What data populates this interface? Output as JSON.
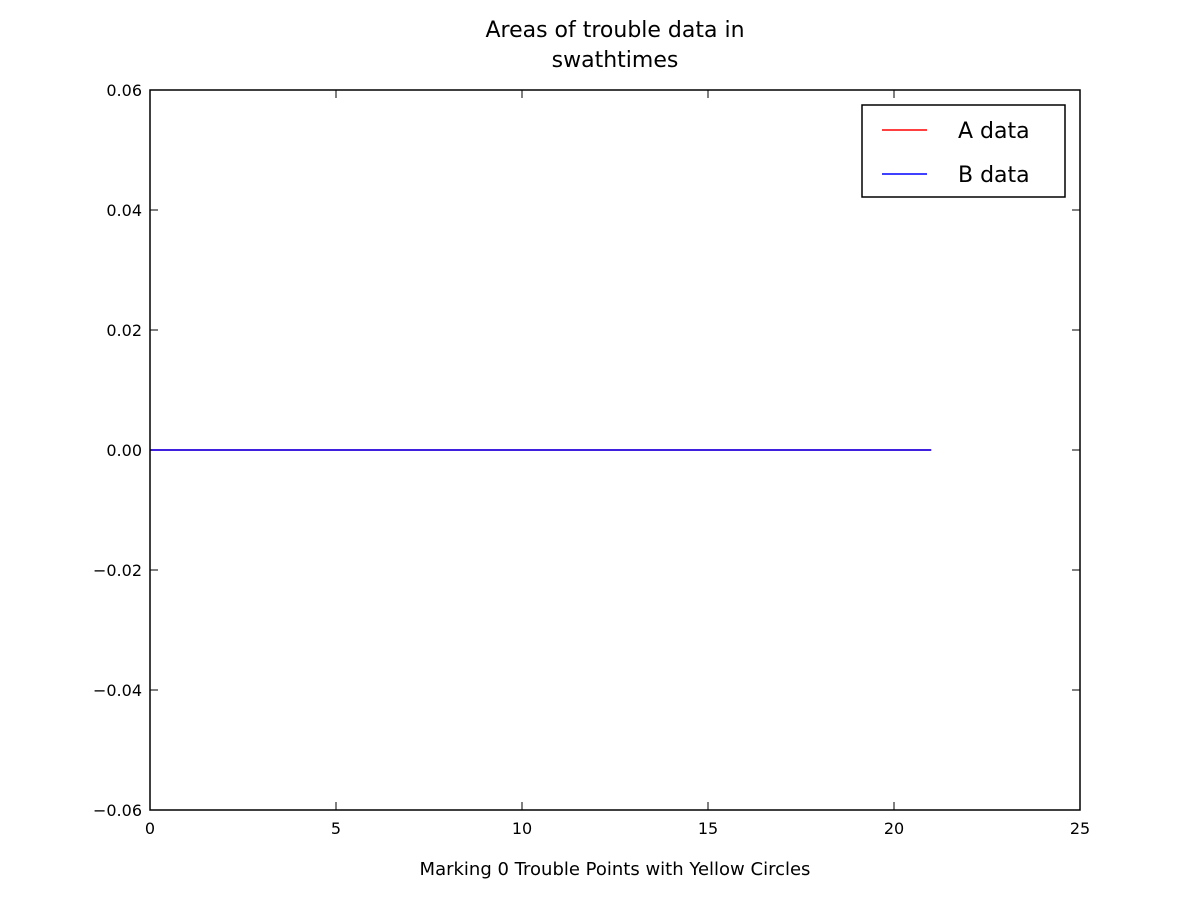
{
  "chart_data": {
    "type": "line",
    "title": "Areas of trouble data in\nswathtimes",
    "x_label": "Marking 0 Trouble Points with Yellow Circles",
    "x": [
      0,
      1,
      2,
      3,
      4,
      5,
      6,
      7,
      8,
      9,
      10,
      11,
      12,
      13,
      14,
      15,
      16,
      17,
      18,
      19,
      20,
      21
    ],
    "series": [
      {
        "name": "A data",
        "color": "#ff0000",
        "values": [
          0,
          0,
          0,
          0,
          0,
          0,
          0,
          0,
          0,
          0,
          0,
          0,
          0,
          0,
          0,
          0,
          0,
          0,
          0,
          0,
          0,
          0
        ]
      },
      {
        "name": "B data",
        "color": "#0000ff",
        "values": [
          0,
          0,
          0,
          0,
          0,
          0,
          0,
          0,
          0,
          0,
          0,
          0,
          0,
          0,
          0,
          0,
          0,
          0,
          0,
          0,
          0,
          0
        ]
      }
    ],
    "xlim": [
      0,
      25
    ],
    "xticks": [
      0,
      5,
      10,
      15,
      20,
      25
    ],
    "ylim": [
      -0.06,
      0.06
    ],
    "yticks": [
      {
        "value": -0.06,
        "label": "−0.06"
      },
      {
        "value": -0.04,
        "label": "−0.04"
      },
      {
        "value": -0.02,
        "label": "−0.02"
      },
      {
        "value": 0,
        "label": "0.00"
      },
      0.02,
      0.04,
      0.06
    ],
    "legend": "upper right"
  }
}
